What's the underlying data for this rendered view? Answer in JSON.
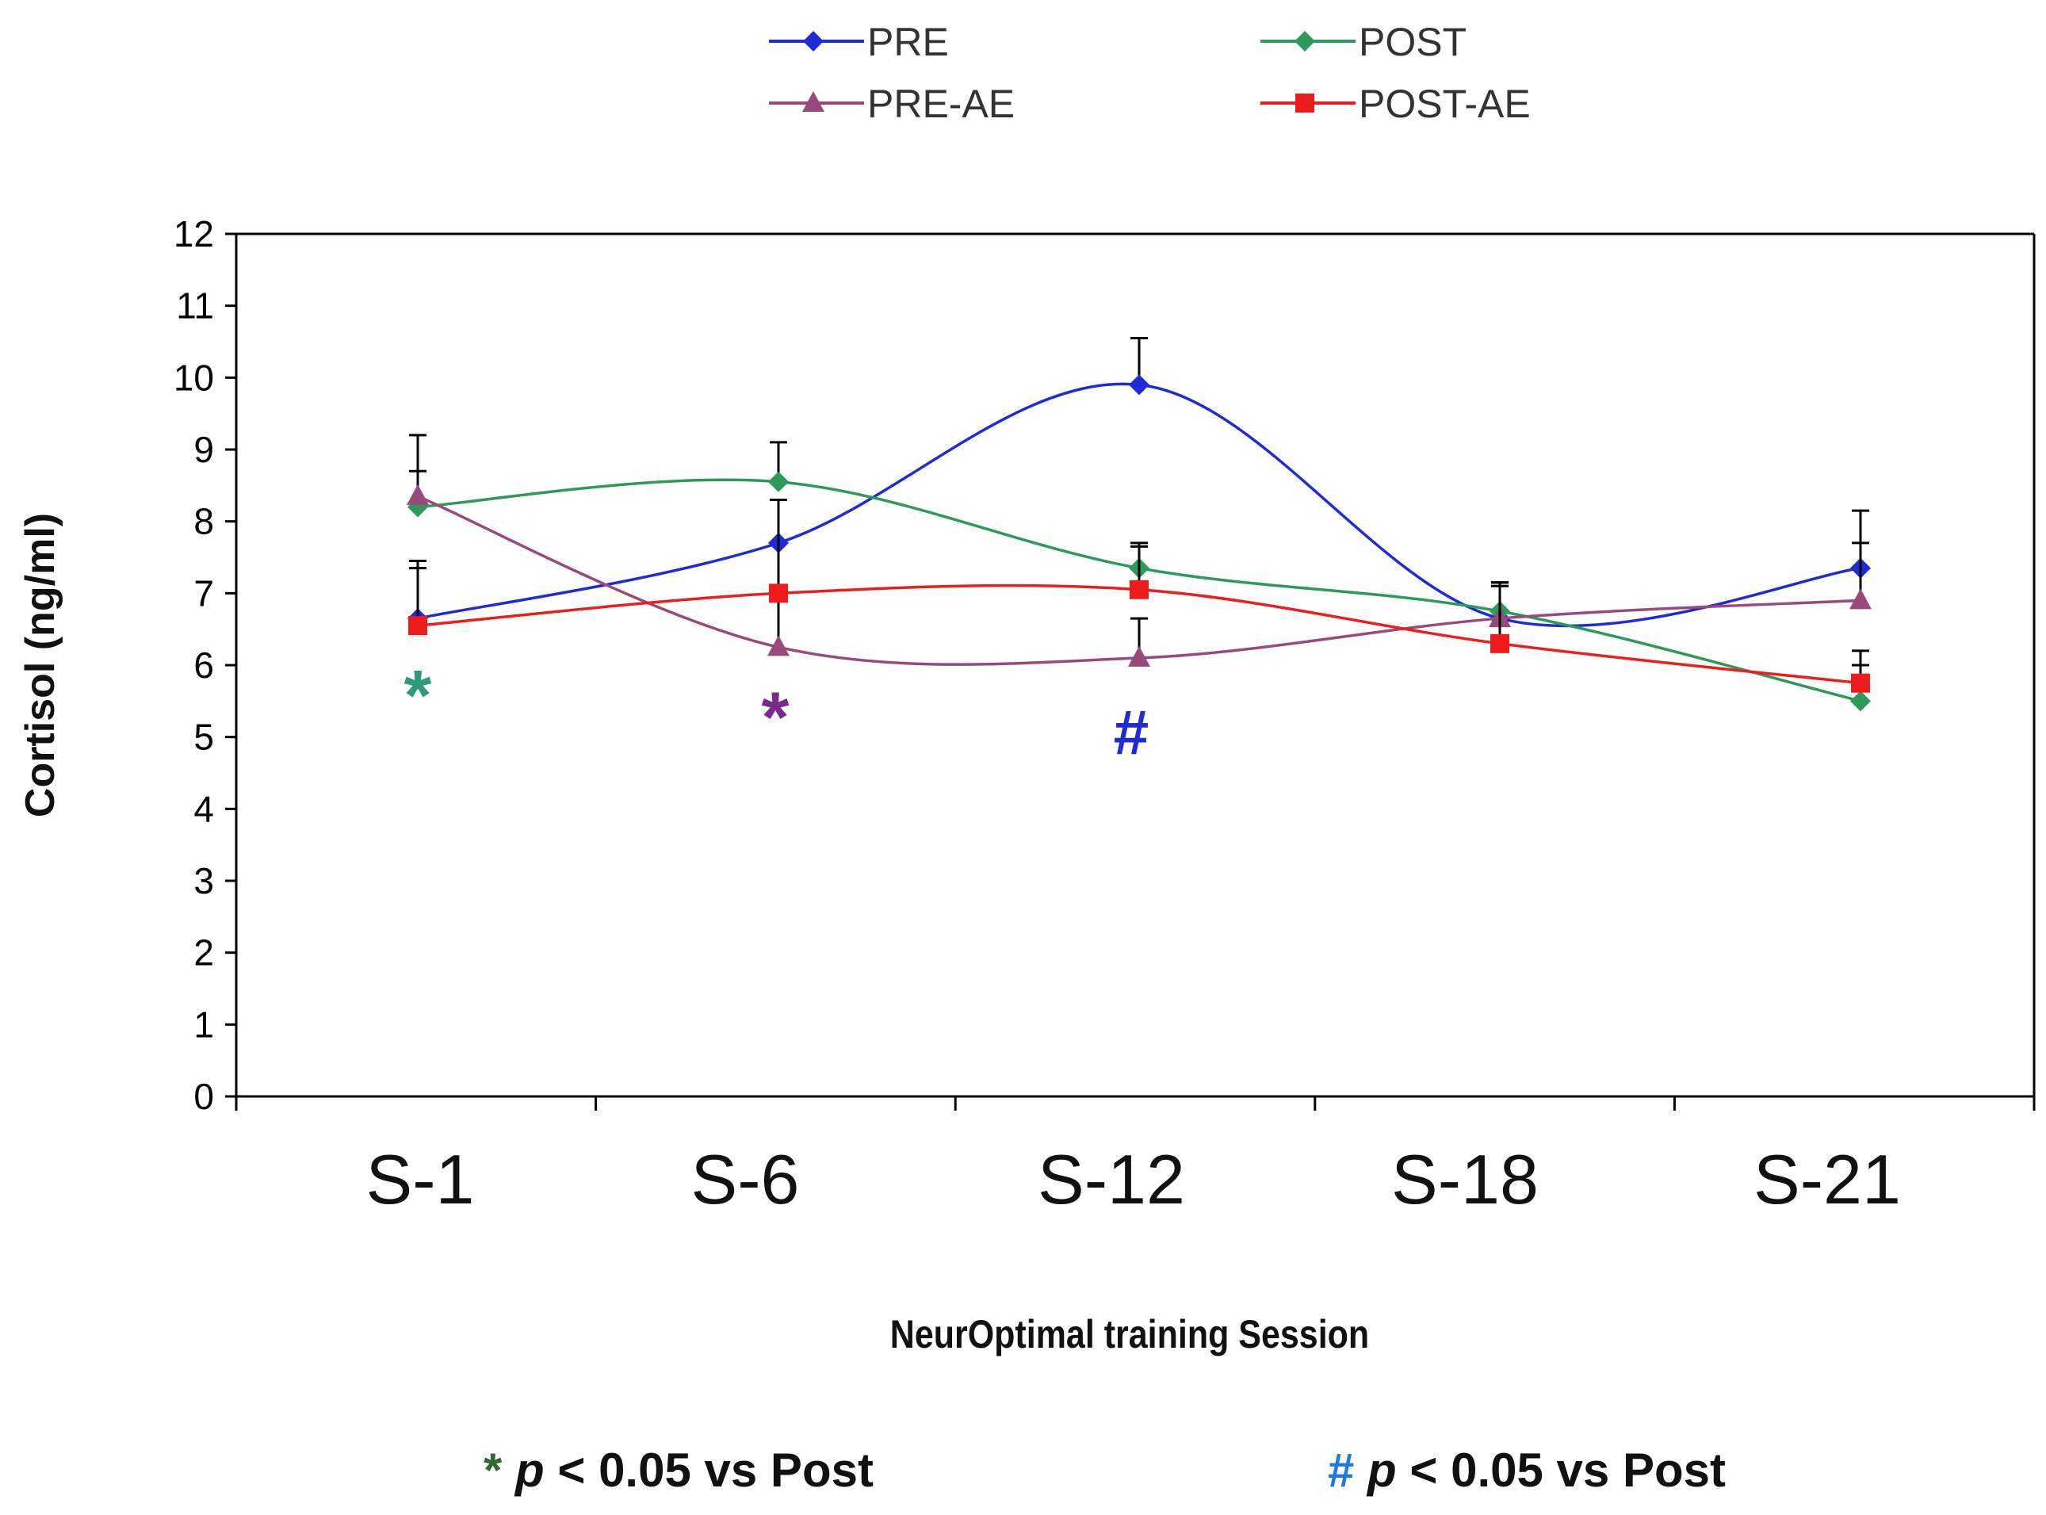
{
  "chart_data": {
    "type": "line",
    "title": "",
    "xlabel": "NeurOptimal training Session",
    "ylabel": "Cortisol (ng/ml)",
    "categories": [
      "S-1",
      "S-6",
      "S-12",
      "S-18",
      "S-21"
    ],
    "ylim": [
      0,
      12
    ],
    "yticks": [
      0,
      1,
      2,
      3,
      4,
      5,
      6,
      7,
      8,
      9,
      10,
      11,
      12
    ],
    "grid": false,
    "legend_position": "top",
    "series": [
      {
        "name": "PRE",
        "color": "#1f2bd6",
        "marker": "diamond",
        "values": [
          6.65,
          7.7,
          9.9,
          6.65,
          7.35
        ],
        "error_up": [
          0.8,
          0.6,
          0.65,
          0.5,
          0.8
        ]
      },
      {
        "name": "POST",
        "color": "#2e9a5a",
        "marker": "diamond",
        "values": [
          8.2,
          8.55,
          7.35,
          6.75,
          5.5
        ],
        "error_up": [
          0.5,
          0.55,
          0.35,
          0.4,
          0.5
        ]
      },
      {
        "name": "PRE-AE",
        "color": "#9a4a7a",
        "marker": "triangle",
        "values": [
          8.35,
          6.25,
          6.1,
          6.65,
          6.9
        ],
        "error_up": [
          0.85,
          2.05,
          0.55,
          0.5,
          0.8
        ]
      },
      {
        "name": "POST-AE",
        "color": "#ee1c1c",
        "marker": "square",
        "values": [
          6.55,
          7.0,
          7.05,
          6.3,
          5.75
        ],
        "error_up": [
          0.8,
          1.3,
          0.6,
          0.8,
          0.45
        ]
      }
    ],
    "annotations": [
      {
        "text": "*",
        "category": "S-1",
        "y": 5.9,
        "color": "#2e9a7a"
      },
      {
        "text": "*",
        "category": "S-6",
        "y": 5.6,
        "color": "#7a2a8a"
      },
      {
        "text": "#",
        "category": "S-12",
        "y": 5.2,
        "color": "#1f2bd6"
      }
    ]
  },
  "footnotes": [
    {
      "symbol": "*",
      "symbol_color": "#2f6a2f",
      "p": "p",
      "text": " < 0.05 vs Post"
    },
    {
      "symbol": "#",
      "symbol_color": "#1f7adf",
      "p": "p",
      "text": " < 0.05 vs Post"
    }
  ]
}
